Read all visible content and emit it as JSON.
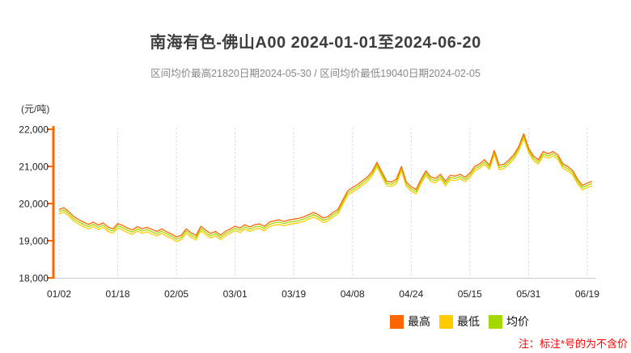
{
  "header": {
    "title": "南海有色-佛山A00 2024-01-01至2024-06-20",
    "subtitle": "区间均价最高21820日期2024-05-30 / 区间均价最低19040日期2024-02-05"
  },
  "legend": {
    "items": [
      {
        "label": "最高",
        "color": "#FF6600"
      },
      {
        "label": "最低",
        "color": "#FFCC00"
      },
      {
        "label": "均价",
        "color": "#A3D900"
      }
    ]
  },
  "footnote": {
    "text": "注：标注*号的为不含价",
    "color": "#FF0000"
  },
  "chart_data": {
    "type": "line",
    "title": "南海有色-佛山A00 2024-01-01至2024-06-20",
    "subtitle": "区间均价最高21820日期2024-05-30 / 区间均价最低19040日期2024-02-05",
    "ylabel": "(元/吨)",
    "ylim": [
      18000,
      22000
    ],
    "grid": "vertical-dashed",
    "legend_position": "bottom-right",
    "axis_color": "#FF6600",
    "gridline_color": "#DCDCDC",
    "xaxis_line_color": "#CCCCCC",
    "yticks": [
      {
        "label": "22,000",
        "value": 22000
      },
      {
        "label": "21,000",
        "value": 21000
      },
      {
        "label": "20,000",
        "value": 20000
      },
      {
        "label": "19,000",
        "value": 19000
      },
      {
        "label": "18,000",
        "value": 18000
      }
    ],
    "xticks": [
      {
        "label": "01/02",
        "index": 0
      },
      {
        "label": "01/18",
        "index": 12
      },
      {
        "label": "02/05",
        "index": 24
      },
      {
        "label": "03/01",
        "index": 36
      },
      {
        "label": "03/19",
        "index": 48
      },
      {
        "label": "04/08",
        "index": 60
      },
      {
        "label": "04/24",
        "index": 72
      },
      {
        "label": "05/15",
        "index": 84
      },
      {
        "label": "05/31",
        "index": 96
      },
      {
        "label": "06/19",
        "index": 108
      }
    ],
    "annotations": {
      "max_avg": {
        "value": 21820,
        "date": "2024-05-30"
      },
      "min_avg": {
        "value": 19040,
        "date": "2024-02-05"
      }
    },
    "series": [
      {
        "name": "最高",
        "color": "#FF6600",
        "values": [
          19840,
          19890,
          19780,
          19650,
          19570,
          19500,
          19440,
          19500,
          19420,
          19480,
          19370,
          19320,
          19460,
          19410,
          19340,
          19290,
          19380,
          19320,
          19360,
          19300,
          19250,
          19320,
          19240,
          19180,
          19100,
          19150,
          19320,
          19210,
          19140,
          19390,
          19280,
          19195,
          19250,
          19150,
          19250,
          19320,
          19390,
          19340,
          19430,
          19370,
          19430,
          19450,
          19390,
          19500,
          19540,
          19560,
          19520,
          19560,
          19580,
          19600,
          19640,
          19700,
          19760,
          19700,
          19610,
          19650,
          19760,
          19840,
          20090,
          20340,
          20430,
          20510,
          20610,
          20710,
          20860,
          21110,
          20850,
          20600,
          20580,
          20660,
          21000,
          20580,
          20450,
          20380,
          20650,
          20880,
          20710,
          20680,
          20790,
          20600,
          20760,
          20740,
          20790,
          20710,
          20820,
          21000,
          21070,
          21180,
          21030,
          21430,
          21030,
          21060,
          21180,
          21320,
          21540,
          21880,
          21490,
          21280,
          21180,
          21400,
          21340,
          21400,
          21310,
          21070,
          21000,
          20890,
          20660,
          20490,
          20550,
          20600
        ]
      },
      {
        "name": "最低",
        "color": "#FFCC00",
        "values": [
          19720,
          19770,
          19660,
          19530,
          19450,
          19380,
          19320,
          19380,
          19300,
          19360,
          19250,
          19200,
          19340,
          19290,
          19220,
          19170,
          19260,
          19200,
          19240,
          19180,
          19130,
          19200,
          19120,
          19060,
          18980,
          19030,
          19200,
          19090,
          19020,
          19270,
          19160,
          19075,
          19130,
          19030,
          19130,
          19200,
          19270,
          19220,
          19310,
          19250,
          19310,
          19330,
          19270,
          19380,
          19420,
          19440,
          19400,
          19440,
          19460,
          19480,
          19520,
          19580,
          19640,
          19580,
          19490,
          19530,
          19640,
          19720,
          19970,
          20220,
          20310,
          20390,
          20490,
          20590,
          20740,
          20990,
          20730,
          20480,
          20460,
          20540,
          20880,
          20460,
          20330,
          20260,
          20530,
          20760,
          20590,
          20560,
          20670,
          20480,
          20640,
          20620,
          20670,
          20590,
          20700,
          20880,
          20950,
          21060,
          20910,
          21310,
          20910,
          20940,
          21060,
          21200,
          21420,
          21760,
          21370,
          21160,
          21060,
          21280,
          21220,
          21280,
          21190,
          20950,
          20880,
          20770,
          20540,
          20370,
          20430,
          20480
        ]
      },
      {
        "name": "均价",
        "color": "#A3D900",
        "values": [
          19780,
          19830,
          19720,
          19590,
          19510,
          19440,
          19380,
          19440,
          19360,
          19420,
          19310,
          19260,
          19400,
          19350,
          19280,
          19230,
          19320,
          19260,
          19300,
          19240,
          19190,
          19260,
          19180,
          19120,
          19040,
          19090,
          19260,
          19150,
          19080,
          19330,
          19220,
          19135,
          19190,
          19090,
          19190,
          19260,
          19330,
          19280,
          19370,
          19310,
          19370,
          19390,
          19330,
          19440,
          19480,
          19500,
          19460,
          19500,
          19520,
          19540,
          19580,
          19640,
          19700,
          19640,
          19550,
          19590,
          19700,
          19780,
          20030,
          20280,
          20370,
          20450,
          20550,
          20650,
          20800,
          21050,
          20790,
          20540,
          20520,
          20600,
          20940,
          20520,
          20390,
          20320,
          20590,
          20820,
          20650,
          20620,
          20730,
          20540,
          20700,
          20680,
          20730,
          20650,
          20760,
          20940,
          21010,
          21120,
          20970,
          21370,
          20970,
          21000,
          21120,
          21260,
          21480,
          21820,
          21430,
          21220,
          21120,
          21340,
          21280,
          21340,
          21250,
          21010,
          20940,
          20830,
          20600,
          20430,
          20490,
          20540
        ]
      }
    ]
  }
}
